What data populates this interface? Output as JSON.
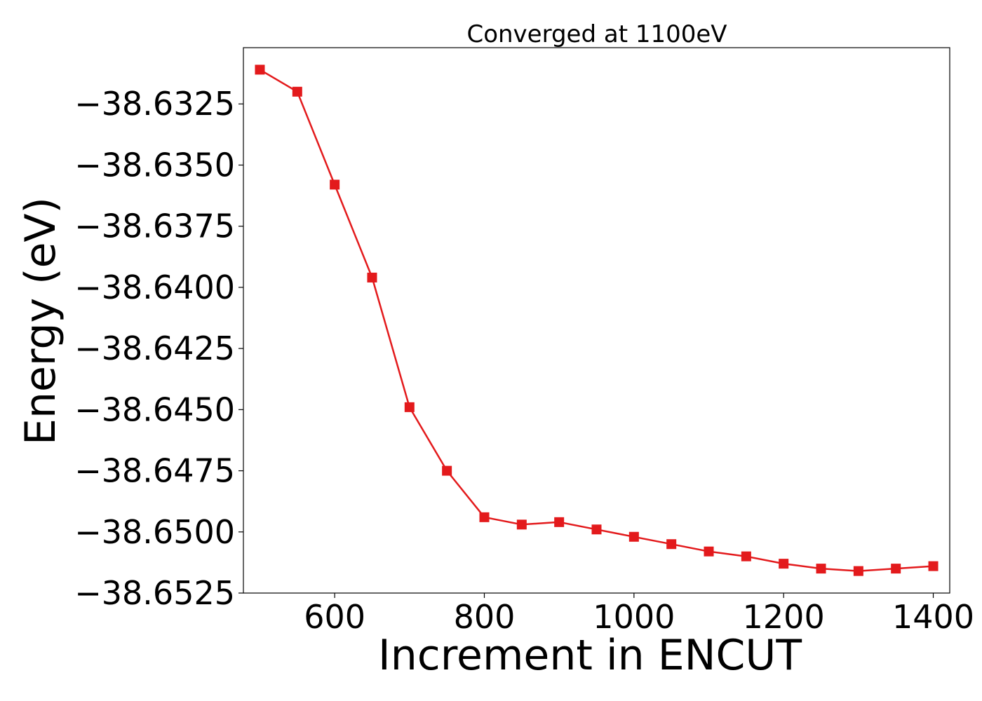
{
  "chart_data": {
    "type": "line",
    "title": "Converged at 1100eV",
    "xlabel": "Increment in ENCUT",
    "ylabel": "Energy (eV)",
    "xlim": [
      478,
      1422
    ],
    "ylim": [
      -38.6525,
      -38.6302
    ],
    "xticks": [
      600,
      800,
      1000,
      1200,
      1400
    ],
    "yticks": [
      -38.6325,
      -38.635,
      -38.6375,
      -38.64,
      -38.6425,
      -38.645,
      -38.6475,
      -38.65,
      -38.6525
    ],
    "ytick_labels": [
      "−38.6325",
      "−38.6350",
      "−38.6375",
      "−38.6400",
      "−38.6425",
      "−38.6450",
      "−38.6475",
      "−38.6500",
      "−38.6525"
    ],
    "grid": false,
    "marker": "square",
    "color": "#e31a1c",
    "series": [
      {
        "x": [
          500,
          550,
          600,
          650,
          700,
          750,
          800,
          850,
          900,
          950,
          1000,
          1050,
          1100,
          1150,
          1200,
          1250,
          1300,
          1350,
          1400
        ],
        "y": [
          -38.6311,
          -38.632,
          -38.6358,
          -38.6396,
          -38.6449,
          -38.6475,
          -38.6494,
          -38.6497,
          -38.6496,
          -38.6499,
          -38.6502,
          -38.6505,
          -38.6508,
          -38.651,
          -38.6513,
          -38.6515,
          -38.6516,
          -38.6515,
          -38.6514
        ]
      }
    ]
  }
}
